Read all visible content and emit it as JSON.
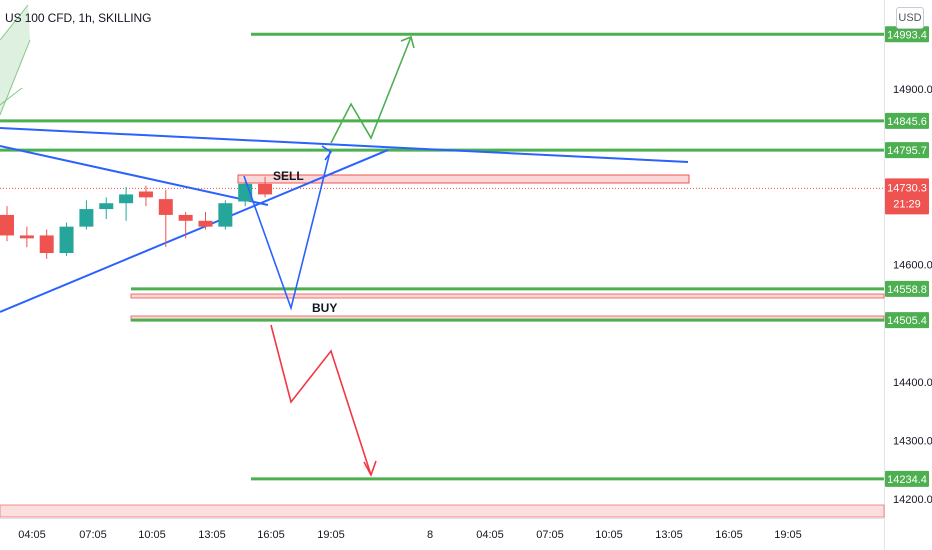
{
  "symbol": {
    "title": "US 100 CFD, 1h, SKILLING",
    "currency": "USD"
  },
  "countdown": "21:29",
  "chart_data": {
    "type": "candlestick",
    "y_range": [
      14178,
      15020
    ],
    "y_ticks": [
      {
        "value": 14900.0,
        "label": "14900.0"
      },
      {
        "value": 14600.0,
        "label": "14600.0"
      },
      {
        "value": 14400.0,
        "label": "14400.0"
      },
      {
        "value": 14300.0,
        "label": "14300.0"
      },
      {
        "value": 14200.0,
        "label": "14200.0"
      }
    ],
    "x_ticks": [
      "04:05",
      "07:05",
      "10:05",
      "13:05",
      "16:05",
      "19:05",
      "8",
      "04:05",
      "07:05",
      "10:05",
      "13:05",
      "16:05",
      "19:05"
    ],
    "candles": [
      {
        "o": 14685,
        "h": 14700,
        "l": 14640,
        "c": 14650,
        "dir": "down"
      },
      {
        "o": 14650,
        "h": 14665,
        "l": 14630,
        "c": 14645,
        "dir": "down"
      },
      {
        "o": 14650,
        "h": 14660,
        "l": 14610,
        "c": 14620,
        "dir": "down"
      },
      {
        "o": 14620,
        "h": 14672,
        "l": 14615,
        "c": 14665,
        "dir": "up"
      },
      {
        "o": 14665,
        "h": 14710,
        "l": 14660,
        "c": 14695,
        "dir": "up"
      },
      {
        "o": 14695,
        "h": 14715,
        "l": 14678,
        "c": 14705,
        "dir": "up"
      },
      {
        "o": 14705,
        "h": 14733,
        "l": 14675,
        "c": 14720,
        "dir": "up"
      },
      {
        "o": 14725,
        "h": 14735,
        "l": 14700,
        "c": 14715,
        "dir": "down"
      },
      {
        "o": 14712,
        "h": 14728,
        "l": 14630,
        "c": 14685,
        "dir": "down"
      },
      {
        "o": 14685,
        "h": 14690,
        "l": 14645,
        "c": 14675,
        "dir": "down"
      },
      {
        "o": 14675,
        "h": 14690,
        "l": 14660,
        "c": 14665,
        "dir": "down"
      },
      {
        "o": 14665,
        "h": 14710,
        "l": 14660,
        "c": 14705,
        "dir": "up"
      },
      {
        "o": 14708,
        "h": 14742,
        "l": 14700,
        "c": 14738,
        "dir": "up"
      },
      {
        "o": 14738,
        "h": 14750,
        "l": 14715,
        "c": 14720,
        "dir": "down"
      }
    ],
    "levels": [
      {
        "label": "14993.4",
        "value": 14993.4,
        "kind": "green-line"
      },
      {
        "label": "14845.6",
        "value": 14845.6,
        "kind": "green-line"
      },
      {
        "label": "14795.7",
        "value": 14795.7,
        "kind": "green-line"
      },
      {
        "label": "14730.3",
        "value": 14730.3,
        "kind": "last-price"
      },
      {
        "label": "14558.8",
        "value": 14558.8,
        "kind": "green-line"
      },
      {
        "label": "14505.4",
        "value": 14505.4,
        "kind": "green-line"
      },
      {
        "label": "14234.4",
        "value": 14234.4,
        "kind": "green-line"
      }
    ],
    "annotations": [
      {
        "text": "SELL"
      },
      {
        "text": "BUY"
      }
    ],
    "colors": {
      "up": "#26a69a",
      "down": "#ef5350",
      "level": "#4caf50",
      "trend": "#2962ff",
      "zone_fill": "#fbd7d7",
      "zone_border": "#ef5350",
      "bull_arrow": "#4caf50",
      "bear_arrow": "#f23645",
      "axis_text": "#131722",
      "last_price": "#ef5350"
    }
  }
}
